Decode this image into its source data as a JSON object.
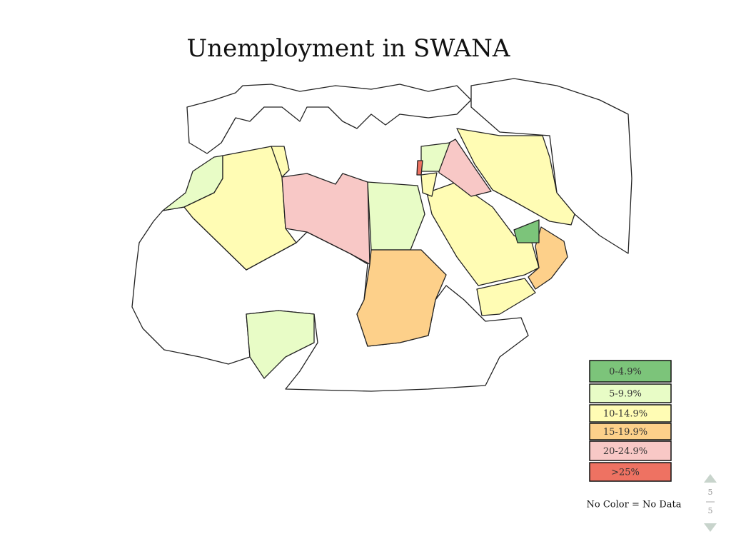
{
  "title": "Unemployment in SWANA",
  "legend": [
    {
      "label": "0-4.9%",
      "color": "#7cc47a"
    },
    {
      "label": "5-9.9%",
      "color": "#e8fcc6"
    },
    {
      "label": "10-14.9%",
      "color": "#fffcb4"
    },
    {
      "label": "15-19.9%",
      "color": "#fdd08a"
    },
    {
      "label": "20-24.9%",
      "color": "#f8c8c6"
    },
    {
      "label": ">25%",
      "color": "#ee7262"
    }
  ],
  "note": "No Color = No Data",
  "pager": {
    "current": "5",
    "total": "5"
  }
}
